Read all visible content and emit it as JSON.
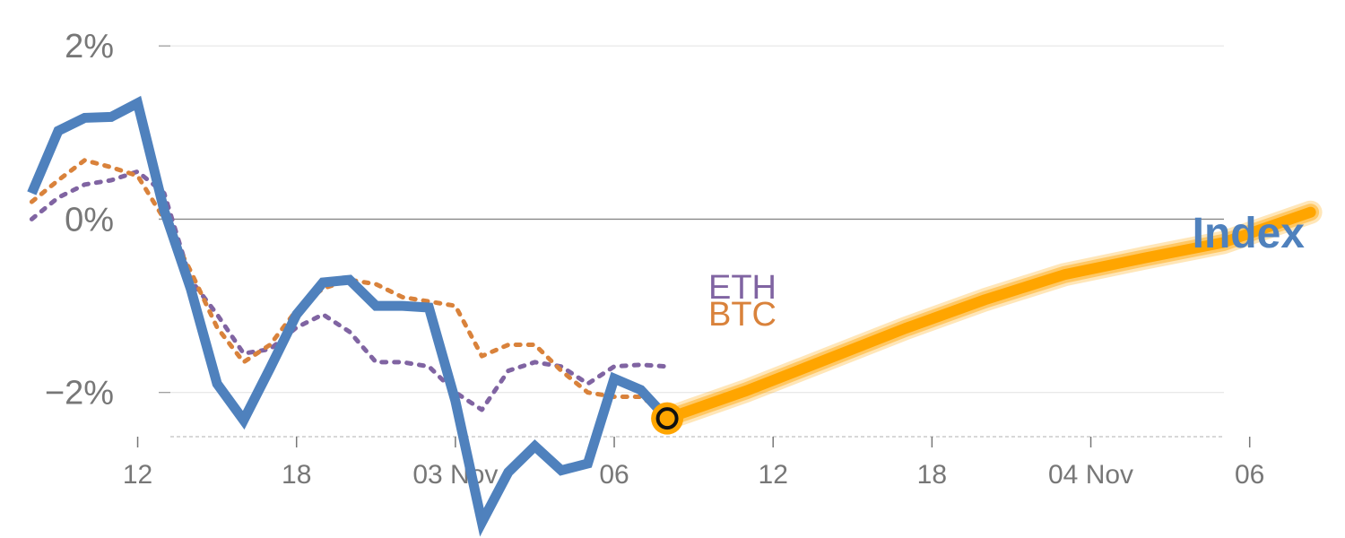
{
  "chart_data": {
    "type": "line",
    "y_unit": "%",
    "y_ticks": [
      {
        "value": 2,
        "label": "2%"
      },
      {
        "value": 0,
        "label": "0%"
      },
      {
        "value": -2,
        "label": "−2%"
      }
    ],
    "x_ticks": [
      {
        "x": 4,
        "label": "12"
      },
      {
        "x": 10,
        "label": "18"
      },
      {
        "x": 16,
        "label": "03 Nov"
      },
      {
        "x": 22,
        "label": "06"
      },
      {
        "x": 28,
        "label": "12"
      },
      {
        "x": 34,
        "label": "18"
      },
      {
        "x": 40,
        "label": "04 Nov"
      },
      {
        "x": 46,
        "label": "06"
      }
    ],
    "xlim": [
      -1.2,
      49.6
    ],
    "ylim": [
      -3.68,
      2.53
    ],
    "grid": true,
    "colors": {
      "index": "#4f81bd",
      "btc": "#d9823b",
      "eth": "#8064a2",
      "forecast": "#ffa500",
      "text": "#777777"
    },
    "series": [
      {
        "key": "index",
        "name": "Index",
        "style": "solid",
        "x": [
          0,
          1,
          2,
          3,
          4,
          5,
          6,
          7,
          8,
          9,
          10,
          11,
          12,
          13,
          14,
          15,
          16,
          17,
          18,
          19,
          20,
          21,
          22,
          23,
          24
        ],
        "y": [
          0.3,
          1.02,
          1.17,
          1.18,
          1.34,
          0.1,
          -0.8,
          -1.9,
          -2.32,
          -1.72,
          -1.1,
          -0.73,
          -0.7,
          -1.0,
          -1.0,
          -1.02,
          -2.1,
          -3.5,
          -2.92,
          -2.62,
          -2.9,
          -2.82,
          -1.84,
          -1.97,
          -2.3
        ]
      },
      {
        "key": "btc",
        "name": "BTC",
        "style": "dotted",
        "x": [
          0,
          1,
          2,
          3,
          4,
          5,
          6,
          7,
          8,
          9,
          10,
          11,
          12,
          13,
          14,
          15,
          16,
          17,
          18,
          19,
          20,
          21,
          22,
          23,
          24
        ],
        "y": [
          0.2,
          0.45,
          0.68,
          0.6,
          0.5,
          0.0,
          -0.6,
          -1.25,
          -1.65,
          -1.45,
          -1.05,
          -0.8,
          -0.7,
          -0.75,
          -0.9,
          -0.95,
          -1.0,
          -1.58,
          -1.45,
          -1.45,
          -1.75,
          -2.0,
          -2.05,
          -2.05,
          -2.25
        ]
      },
      {
        "key": "eth",
        "name": "ETH",
        "style": "dotted",
        "x": [
          0,
          1,
          2,
          3,
          4,
          5,
          6,
          7,
          8,
          9,
          10,
          11,
          12,
          13,
          14,
          15,
          16,
          17,
          18,
          19,
          20,
          21,
          22,
          23,
          24
        ],
        "y": [
          0.0,
          0.25,
          0.4,
          0.45,
          0.55,
          0.3,
          -0.7,
          -1.1,
          -1.55,
          -1.5,
          -1.25,
          -1.1,
          -1.3,
          -1.65,
          -1.65,
          -1.7,
          -2.0,
          -2.2,
          -1.75,
          -1.65,
          -1.7,
          -1.9,
          -1.7,
          -1.68,
          -1.7
        ]
      },
      {
        "key": "forecast",
        "style": "band",
        "x": [
          24,
          27,
          30,
          33,
          36,
          39,
          42,
          45,
          48.3
        ],
        "y": [
          -2.3,
          -1.98,
          -1.62,
          -1.26,
          -0.93,
          -0.64,
          -0.45,
          -0.27,
          0.08
        ]
      }
    ],
    "marker": {
      "x": 24,
      "y": -2.3
    },
    "annotations": [
      {
        "text": "ETH",
        "series": "eth"
      },
      {
        "text": "BTC",
        "series": "btc"
      },
      {
        "text": "Index",
        "series": "index"
      }
    ]
  }
}
